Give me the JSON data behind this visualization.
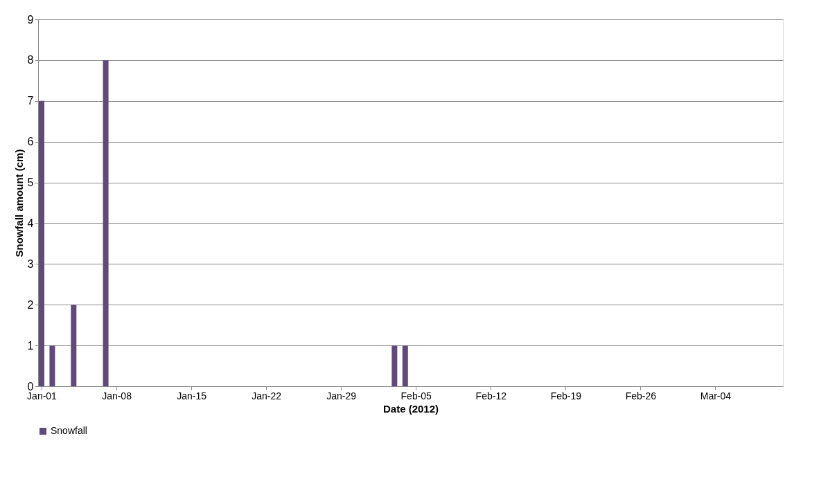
{
  "chart_data": {
    "type": "bar",
    "xlabel": "Date (2012)",
    "ylabel": "Snowfall amount (cm)",
    "x": [
      "2012-01-01",
      "2012-01-02",
      "2012-01-04",
      "2012-01-07",
      "2012-02-03",
      "2012-02-04"
    ],
    "series": [
      {
        "name": "Snowfall",
        "color": "#604a7b",
        "values": [
          7,
          1,
          2,
          8,
          1,
          1
        ]
      }
    ],
    "xlim": [
      "2012-01-01",
      "2012-03-10"
    ],
    "xticks": [
      {
        "value": "2012-01-01",
        "label": "Jan-01"
      },
      {
        "value": "2012-01-08",
        "label": "Jan-08"
      },
      {
        "value": "2012-01-15",
        "label": "Jan-15"
      },
      {
        "value": "2012-01-22",
        "label": "Jan-22"
      },
      {
        "value": "2012-01-29",
        "label": "Jan-29"
      },
      {
        "value": "2012-02-05",
        "label": "Feb-05"
      },
      {
        "value": "2012-02-12",
        "label": "Feb-12"
      },
      {
        "value": "2012-02-19",
        "label": "Feb-19"
      },
      {
        "value": "2012-02-26",
        "label": "Feb-26"
      },
      {
        "value": "2012-03-04",
        "label": "Mar-04"
      }
    ],
    "ylim": [
      0,
      9
    ],
    "yticks": [
      0,
      1,
      2,
      3,
      4,
      5,
      6,
      7,
      8,
      9
    ],
    "grid": "y",
    "legend": "bottom"
  }
}
